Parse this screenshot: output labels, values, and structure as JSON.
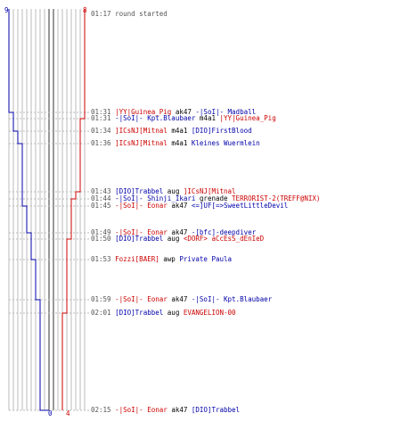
{
  "colors": {
    "ct": "#0000aa",
    "t": "#cc0000",
    "grid": "#bbbbbb",
    "axis": "#333333"
  },
  "scores": {
    "ct_start": "9",
    "t_start": "8",
    "ct_end": "0",
    "t_end": "4"
  },
  "events": [
    {
      "time": "01:17",
      "message": "round started"
    },
    {
      "time": "01:31",
      "killer": "|YY|Guinea_Pig",
      "killer_team": "t",
      "weapon": "ak47",
      "victim": "-|SoI|- Madball",
      "victim_team": "ct"
    },
    {
      "time": "01:31",
      "killer": "-|SoI|- Kpt.Blaubaer",
      "killer_team": "ct",
      "weapon": "m4a1",
      "victim": "|YY|Guinea_Pig",
      "victim_team": "t"
    },
    {
      "time": "01:34",
      "killer": "]ICsNJ[Mitnal",
      "killer_team": "t",
      "weapon": "m4a1",
      "victim": "[DIO]FirstBlood",
      "victim_team": "ct"
    },
    {
      "time": "01:36",
      "killer": "]ICsNJ[Mitnal",
      "killer_team": "t",
      "weapon": "m4a1",
      "victim": "Kleines Wuermlein",
      "victim_team": "ct"
    },
    {
      "time": "01:43",
      "killer": "[DIO]Trabbel",
      "killer_team": "ct",
      "weapon": "aug",
      "victim": "]ICsNJ[Mitnal",
      "victim_team": "t"
    },
    {
      "time": "01:44",
      "killer": "-|SoI|- Shinji_Ikari",
      "killer_team": "ct",
      "weapon": "grenade",
      "victim": "TERRORIST-2(TREFF@NIX)",
      "victim_team": "t"
    },
    {
      "time": "01:45",
      "killer": "-|SoI|- Eonar",
      "killer_team": "t",
      "weapon": "ak47",
      "victim": "<=]UF[=>SweetLittleDevil",
      "victim_team": "ct"
    },
    {
      "time": "01:49",
      "killer": "-|SoI|- Eonar",
      "killer_team": "t",
      "weapon": "ak47",
      "victim": "-[bfc]-deepdiver",
      "victim_team": "ct"
    },
    {
      "time": "01:50",
      "killer": "[DIO]Trabbel",
      "killer_team": "ct",
      "weapon": "aug",
      "victim": "<DORF> aCcEsS_dEnIeD",
      "victim_team": "t"
    },
    {
      "time": "01:53",
      "killer": "Fozzi[BAER]",
      "killer_team": "t",
      "weapon": "awp",
      "victim": "Private Paula",
      "victim_team": "ct"
    },
    {
      "time": "01:59",
      "killer": "-|SoI|- Eonar",
      "killer_team": "t",
      "weapon": "ak47",
      "victim": "-|SoI|- Kpt.Blaubaer",
      "victim_team": "ct"
    },
    {
      "time": "02:01",
      "killer": "[DIO]Trabbel",
      "killer_team": "ct",
      "weapon": "aug",
      "victim": "EVANGELION-00",
      "victim_team": "t"
    },
    {
      "time": "02:15",
      "killer": "-|SoI|- Eonar",
      "killer_team": "t",
      "weapon": "ak47",
      "victim": "[DIO]Trabbel",
      "victim_team": "ct"
    }
  ]
}
